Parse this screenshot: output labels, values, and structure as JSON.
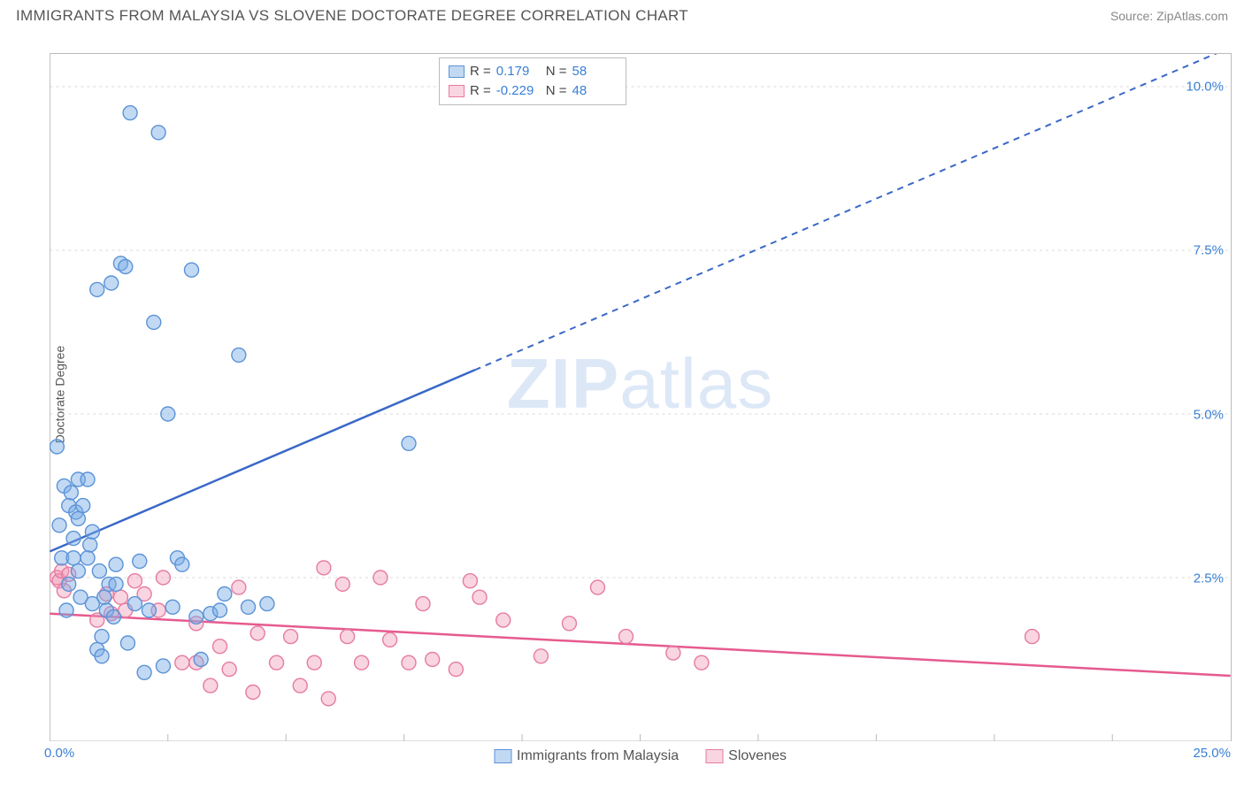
{
  "title": "IMMIGRANTS FROM MALAYSIA VS SLOVENE DOCTORATE DEGREE CORRELATION CHART",
  "source_prefix": "Source: ",
  "source_name": "ZipAtlas.com",
  "ylabel": "Doctorate Degree",
  "watermark_a": "ZIP",
  "watermark_b": "atlas",
  "axes": {
    "xlim": [
      0,
      25
    ],
    "ylim": [
      0,
      10.5
    ],
    "yticks": [
      {
        "v": 2.5,
        "label": "2.5%"
      },
      {
        "v": 5.0,
        "label": "5.0%"
      },
      {
        "v": 7.5,
        "label": "7.5%"
      },
      {
        "v": 10.0,
        "label": "10.0%"
      }
    ],
    "xticks_minor": [
      2.5,
      5,
      7.5,
      10,
      12.5,
      15,
      17.5,
      20,
      22.5
    ],
    "x_origin_label": "0.0%",
    "x_max_label": "25.0%",
    "grid_color": "#d9d9d9",
    "axis_color": "#bbbbbb"
  },
  "series": {
    "blue": {
      "label": "Immigrants from Malaysia",
      "color_fill": "rgba(120,170,230,0.45)",
      "color_stroke": "#5b93d6",
      "marker_r": 8,
      "R": "0.179",
      "N": "58",
      "line": {
        "x1": 0,
        "y1": 2.9,
        "x2": 25,
        "y2": 10.6,
        "solid_until_x": 9.0
      },
      "line_color": "#3a68c8",
      "points": [
        [
          0.15,
          4.5
        ],
        [
          0.2,
          3.3
        ],
        [
          0.25,
          2.8
        ],
        [
          0.3,
          3.9
        ],
        [
          0.35,
          2.0
        ],
        [
          0.4,
          3.6
        ],
        [
          0.45,
          3.8
        ],
        [
          0.5,
          2.8
        ],
        [
          0.55,
          3.5
        ],
        [
          0.6,
          2.6
        ],
        [
          0.6,
          4.0
        ],
        [
          0.65,
          2.2
        ],
        [
          0.7,
          3.6
        ],
        [
          0.8,
          2.8
        ],
        [
          0.85,
          3.0
        ],
        [
          0.9,
          3.2
        ],
        [
          1.0,
          1.4
        ],
        [
          1.05,
          2.6
        ],
        [
          1.1,
          1.6
        ],
        [
          1.15,
          2.2
        ],
        [
          1.2,
          2.0
        ],
        [
          1.25,
          2.4
        ],
        [
          1.3,
          7.0
        ],
        [
          1.35,
          1.9
        ],
        [
          1.4,
          2.7
        ],
        [
          1.5,
          7.3
        ],
        [
          1.6,
          7.25
        ],
        [
          1.65,
          1.5
        ],
        [
          1.7,
          9.6
        ],
        [
          1.8,
          2.1
        ],
        [
          1.9,
          2.75
        ],
        [
          2.0,
          1.05
        ],
        [
          2.1,
          2.0
        ],
        [
          2.2,
          6.4
        ],
        [
          2.3,
          9.3
        ],
        [
          2.4,
          1.15
        ],
        [
          2.5,
          5.0
        ],
        [
          2.6,
          2.05
        ],
        [
          2.7,
          2.8
        ],
        [
          2.8,
          2.7
        ],
        [
          3.0,
          7.2
        ],
        [
          3.1,
          1.9
        ],
        [
          3.2,
          1.25
        ],
        [
          3.4,
          1.95
        ],
        [
          3.6,
          2.0
        ],
        [
          3.7,
          2.25
        ],
        [
          4.0,
          5.9
        ],
        [
          4.2,
          2.05
        ],
        [
          4.6,
          2.1
        ],
        [
          7.6,
          4.55
        ],
        [
          1.0,
          6.9
        ],
        [
          0.8,
          4.0
        ],
        [
          0.4,
          2.4
        ],
        [
          0.5,
          3.1
        ],
        [
          0.6,
          3.4
        ],
        [
          0.9,
          2.1
        ],
        [
          1.1,
          1.3
        ],
        [
          1.4,
          2.4
        ]
      ]
    },
    "pink": {
      "label": "Slovenes",
      "color_fill": "rgba(240,150,180,0.40)",
      "color_stroke": "#e67ba2",
      "marker_r": 8,
      "R": "-0.229",
      "N": "48",
      "line": {
        "x1": 0,
        "y1": 1.95,
        "x2": 25,
        "y2": 1.0
      },
      "line_color": "#e65a8e",
      "points": [
        [
          0.15,
          2.5
        ],
        [
          0.2,
          2.45
        ],
        [
          0.25,
          2.6
        ],
        [
          0.3,
          2.3
        ],
        [
          0.4,
          2.55
        ],
        [
          1.0,
          1.85
        ],
        [
          1.2,
          2.25
        ],
        [
          1.3,
          1.95
        ],
        [
          1.5,
          2.2
        ],
        [
          1.6,
          2.0
        ],
        [
          1.8,
          2.45
        ],
        [
          2.0,
          2.25
        ],
        [
          2.3,
          2.0
        ],
        [
          2.4,
          2.5
        ],
        [
          2.8,
          1.2
        ],
        [
          3.1,
          1.2
        ],
        [
          3.1,
          1.8
        ],
        [
          3.4,
          0.85
        ],
        [
          3.6,
          1.45
        ],
        [
          3.8,
          1.1
        ],
        [
          4.0,
          2.35
        ],
        [
          4.3,
          0.75
        ],
        [
          4.4,
          1.65
        ],
        [
          4.8,
          1.2
        ],
        [
          5.1,
          1.6
        ],
        [
          5.3,
          0.85
        ],
        [
          5.6,
          1.2
        ],
        [
          5.8,
          2.65
        ],
        [
          5.9,
          0.65
        ],
        [
          6.2,
          2.4
        ],
        [
          6.3,
          1.6
        ],
        [
          6.6,
          1.2
        ],
        [
          7.0,
          2.5
        ],
        [
          7.2,
          1.55
        ],
        [
          7.6,
          1.2
        ],
        [
          7.9,
          2.1
        ],
        [
          8.1,
          1.25
        ],
        [
          8.6,
          1.1
        ],
        [
          8.9,
          2.45
        ],
        [
          9.1,
          2.2
        ],
        [
          9.6,
          1.85
        ],
        [
          10.4,
          1.3
        ],
        [
          11.0,
          1.8
        ],
        [
          11.6,
          2.35
        ],
        [
          12.2,
          1.6
        ],
        [
          13.2,
          1.35
        ],
        [
          13.8,
          1.2
        ],
        [
          20.8,
          1.6
        ]
      ]
    }
  }
}
